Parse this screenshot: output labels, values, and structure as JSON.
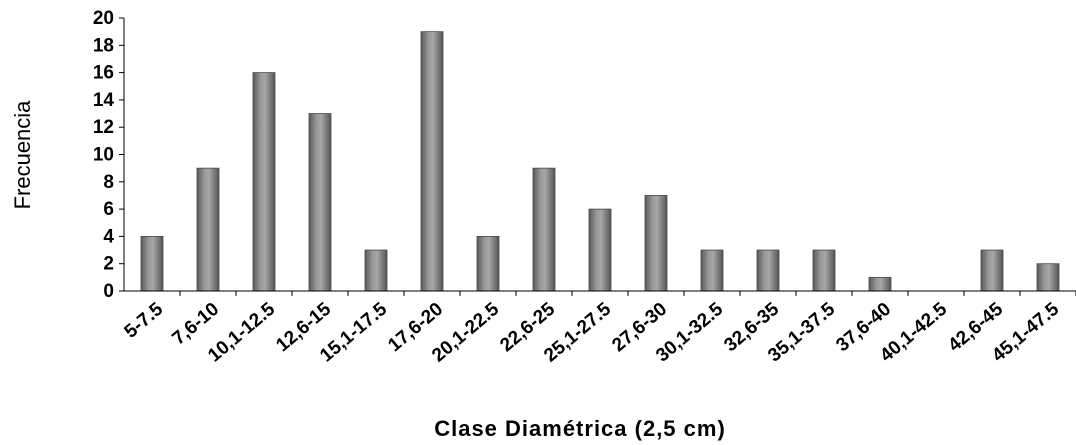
{
  "chart_data": {
    "type": "bar",
    "title": "",
    "xlabel": "Clase Diamétrica (2,5 cm)",
    "ylabel": "Frecuencia",
    "ylim": [
      0,
      20
    ],
    "yticks": [
      0,
      2,
      4,
      6,
      8,
      10,
      12,
      14,
      16,
      18,
      20
    ],
    "grid": false,
    "legend": "none",
    "bar_color": "#7f7f7f",
    "categories": [
      "5-7.5",
      "7,6-10",
      "10,1-12.5",
      "12,6-15",
      "15,1-17.5",
      "17,6-20",
      "20,1-22.5",
      "22,6-25",
      "25,1-27.5",
      "27,6-30",
      "30,1-32.5",
      "32,6-35",
      "35,1-37.5",
      "37,6-40",
      "40,1-42.5",
      "42,6-45",
      "45,1-47.5"
    ],
    "values": [
      4,
      9,
      16,
      13,
      3,
      19,
      4,
      9,
      6,
      7,
      3,
      3,
      3,
      1,
      0,
      3,
      2
    ]
  }
}
